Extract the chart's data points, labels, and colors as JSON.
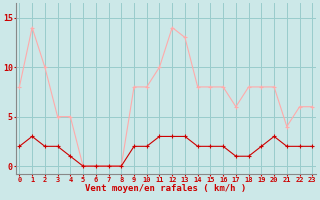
{
  "x": [
    0,
    1,
    2,
    3,
    4,
    5,
    6,
    7,
    8,
    9,
    10,
    11,
    12,
    13,
    14,
    15,
    16,
    17,
    18,
    19,
    20,
    21,
    22,
    23
  ],
  "avg": [
    2,
    3,
    2,
    2,
    1,
    0,
    0,
    0,
    0,
    2,
    2,
    3,
    3,
    3,
    2,
    2,
    2,
    1,
    1,
    2,
    3,
    2,
    2,
    2
  ],
  "gust": [
    8,
    14,
    10,
    5,
    5,
    0,
    0,
    0,
    0,
    8,
    8,
    10,
    14,
    13,
    8,
    8,
    8,
    6,
    8,
    8,
    8,
    4,
    6,
    6
  ],
  "bg_color": "#cce8e8",
  "avg_color": "#cc0000",
  "gust_color": "#ffaaaa",
  "grid_color": "#99cccc",
  "xlabel": "Vent moyen/en rafales ( km/h )",
  "ylabel_ticks": [
    0,
    5,
    10,
    15
  ],
  "xlim": [
    -0.3,
    23.3
  ],
  "ylim": [
    -0.8,
    16.5
  ]
}
